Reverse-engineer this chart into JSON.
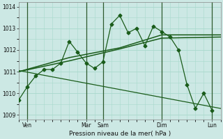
{
  "background_color": "#cce8e4",
  "grid_color": "#a8d8cc",
  "line_color": "#1a5c1a",
  "xlabel": "Pression niveau de la mer( hPa )",
  "ylim": [
    1008.8,
    1014.2
  ],
  "yticks": [
    1009,
    1010,
    1011,
    1012,
    1013,
    1014
  ],
  "xlim": [
    0,
    24
  ],
  "x_tick_labels": [
    "Ven",
    "Mar",
    "Sam",
    "Dim",
    "Lun"
  ],
  "x_tick_positions": [
    1,
    8,
    10,
    17,
    23
  ],
  "vlines": [
    1,
    8,
    10,
    17,
    23
  ],
  "series1_x": [
    0,
    1,
    2,
    3,
    4,
    5,
    6,
    7,
    8,
    9,
    10,
    11,
    12,
    13,
    14,
    15,
    16,
    17,
    18,
    19,
    20,
    21,
    22,
    23
  ],
  "series1_y": [
    1009.7,
    1010.3,
    1010.8,
    1011.1,
    1011.1,
    1011.4,
    1012.4,
    1011.9,
    1011.4,
    1011.15,
    1011.45,
    1013.2,
    1013.6,
    1012.8,
    1013.0,
    1012.2,
    1013.1,
    1012.85,
    1012.6,
    1012.0,
    1010.4,
    1009.3,
    1010.0,
    1009.2
  ],
  "series2_x": [
    0,
    24
  ],
  "series2_y": [
    1011.05,
    1009.3
  ],
  "series3_x": [
    0,
    6,
    12,
    17,
    24
  ],
  "series3_y": [
    1011.0,
    1011.5,
    1012.05,
    1012.55,
    1012.6
  ],
  "series4_x": [
    0,
    6,
    12,
    17,
    24
  ],
  "series4_y": [
    1011.0,
    1011.65,
    1012.1,
    1012.7,
    1012.7
  ]
}
